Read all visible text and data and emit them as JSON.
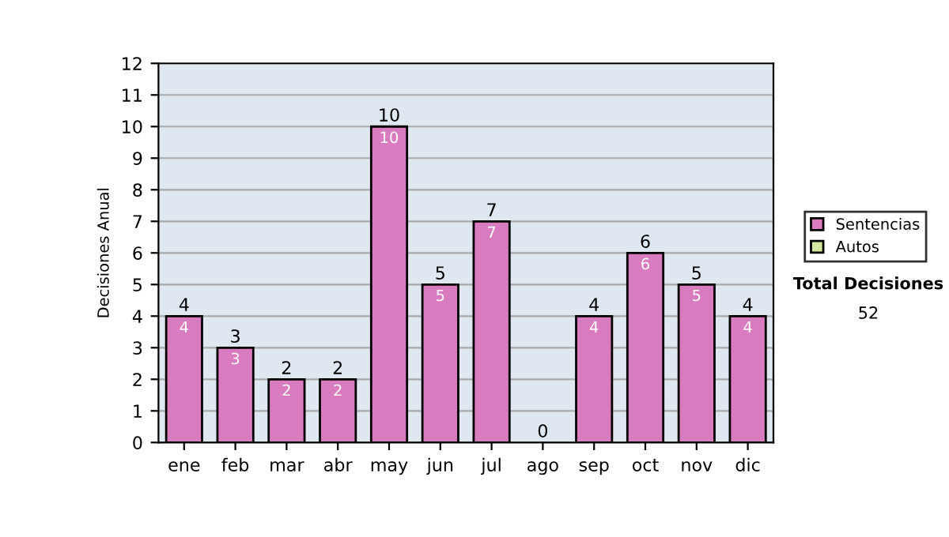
{
  "chart_data": {
    "type": "bar",
    "stacked": true,
    "ylabel": "Decisiones Anual",
    "categories": [
      "ene",
      "feb",
      "mar",
      "abr",
      "may",
      "jun",
      "jul",
      "ago",
      "sep",
      "oct",
      "nov",
      "dic"
    ],
    "series": [
      {
        "name": "Sentencias",
        "color": "#d87cbf",
        "values": [
          4,
          3,
          2,
          2,
          10,
          5,
          7,
          0,
          4,
          6,
          5,
          4
        ],
        "value_labels": [
          "4",
          "3",
          "2",
          "2",
          "10",
          "5",
          "7",
          null,
          "4",
          "6",
          "5",
          "4"
        ]
      },
      {
        "name": "Autos",
        "color": "#d4e8a0",
        "values": [
          0,
          0,
          0,
          0,
          0,
          0,
          0,
          0,
          0,
          0,
          0,
          0
        ]
      }
    ],
    "totals": [
      "4",
      "3",
      "2",
      "2",
      "10",
      "5",
      "7",
      "0",
      "4",
      "6",
      "5",
      "4"
    ],
    "ylim": [
      0,
      12
    ],
    "yticks": [
      0,
      1,
      2,
      3,
      4,
      5,
      6,
      7,
      8,
      9,
      10,
      11,
      12
    ],
    "grid": "y",
    "legend": "right",
    "annotations": [
      "Total Decisiones",
      "52"
    ]
  }
}
